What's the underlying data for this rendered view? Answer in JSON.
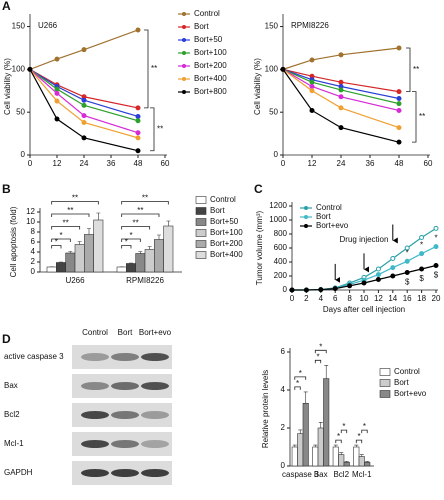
{
  "chart_data": [
    {
      "type": "line",
      "label": "A",
      "title": "U266",
      "ylabel": "Cell viability (%)",
      "x": [
        0,
        12,
        24,
        48
      ],
      "xlim": [
        0,
        60
      ],
      "xticks": [
        0,
        12,
        24,
        36,
        48,
        60
      ],
      "ylim": [
        0,
        160
      ],
      "yticks": [
        0,
        50,
        100,
        150
      ],
      "series": [
        {
          "name": "Control",
          "color": "#a0722e",
          "values": [
            100,
            112,
            123,
            146
          ]
        },
        {
          "name": "Bort",
          "color": "#d62728",
          "values": [
            100,
            82,
            68,
            55
          ]
        },
        {
          "name": "Bort+50",
          "color": "#2a3fd6",
          "values": [
            100,
            80,
            64,
            45
          ]
        },
        {
          "name": "Bort+100",
          "color": "#2ca02c",
          "values": [
            100,
            77,
            58,
            40
          ]
        },
        {
          "name": "Bort+200",
          "color": "#d62ad6",
          "values": [
            100,
            72,
            46,
            26
          ]
        },
        {
          "name": "Bort+400",
          "color": "#f0a030",
          "values": [
            100,
            63,
            38,
            20
          ]
        },
        {
          "name": "Bort+800",
          "color": "#000000",
          "values": [
            100,
            42,
            20,
            5
          ]
        }
      ],
      "annotations": [
        "**",
        "**"
      ]
    },
    {
      "type": "line",
      "title": "RPMI8226",
      "ylabel": "Cell viability (%)",
      "x": [
        0,
        12,
        24,
        48
      ],
      "xlim": [
        0,
        60
      ],
      "xticks": [
        0,
        12,
        24,
        36,
        48,
        60
      ],
      "ylim": [
        0,
        160
      ],
      "yticks": [
        0,
        50,
        100,
        150
      ],
      "series": [
        {
          "color": "#a0722e",
          "values": [
            100,
            111,
            117,
            125
          ]
        },
        {
          "color": "#d62728",
          "values": [
            100,
            92,
            85,
            74
          ]
        },
        {
          "color": "#2a3fd6",
          "values": [
            100,
            88,
            80,
            66
          ]
        },
        {
          "color": "#2ca02c",
          "values": [
            100,
            85,
            76,
            60
          ]
        },
        {
          "color": "#d62ad6",
          "values": [
            100,
            80,
            68,
            52
          ]
        },
        {
          "color": "#f0a030",
          "values": [
            100,
            75,
            55,
            32
          ]
        },
        {
          "color": "#000000",
          "values": [
            100,
            52,
            32,
            15
          ]
        }
      ],
      "annotations": [
        "**",
        "**"
      ]
    },
    {
      "type": "bar",
      "label": "B",
      "ylabel": "Cell apoptosis (fold)",
      "categories": [
        "U266",
        "RPMI8226"
      ],
      "ylim": [
        0,
        12
      ],
      "yticks": [
        0,
        2,
        4,
        6,
        8,
        10,
        12
      ],
      "series": [
        {
          "name": "Control",
          "color": "#ffffff",
          "values": [
            1,
            1
          ],
          "errors": [
            0.05,
            0.05
          ]
        },
        {
          "name": "Bort",
          "color": "#444444",
          "values": [
            1.9,
            1.7
          ],
          "errors": [
            0.1,
            0.1
          ]
        },
        {
          "name": "Bort+50",
          "color": "#888888",
          "values": [
            3.8,
            3.7
          ],
          "errors": [
            0.3,
            0.4
          ]
        },
        {
          "name": "Bort+100",
          "color": "#cccccc",
          "values": [
            5.5,
            4.5
          ],
          "errors": [
            0.6,
            0.6
          ]
        },
        {
          "name": "Bort+200",
          "color": "#aaaaaa",
          "values": [
            7.5,
            6.5
          ],
          "errors": [
            1.2,
            0.9
          ]
        },
        {
          "name": "Bort+400",
          "color": "#dddddd",
          "values": [
            10.4,
            9.2
          ],
          "errors": [
            1.4,
            1.0
          ]
        }
      ],
      "annotations": [
        "*",
        "*",
        "**",
        "**",
        "**",
        "*",
        "*",
        "**",
        "**",
        "**"
      ]
    },
    {
      "type": "line",
      "label": "C",
      "ylabel": "Tumor volume (mm³)",
      "xlabel": "Days after cell injection",
      "x": [
        0,
        2,
        4,
        6,
        8,
        10,
        12,
        14,
        16,
        18,
        20
      ],
      "xlim": [
        0,
        20
      ],
      "xticks": [
        0,
        2,
        4,
        6,
        8,
        10,
        12,
        14,
        16,
        18,
        20
      ],
      "ylim": [
        0,
        1200
      ],
      "yticks": [
        0,
        200,
        400,
        600,
        800,
        1000,
        1200
      ],
      "series": [
        {
          "name": "Control",
          "color": "#2aa0a8",
          "values": [
            0,
            0,
            5,
            30,
            100,
            180,
            300,
            450,
            600,
            750,
            880
          ]
        },
        {
          "name": "Bort",
          "color": "#3fb8c8",
          "values": [
            0,
            0,
            5,
            25,
            80,
            140,
            220,
            320,
            410,
            520,
            620
          ]
        },
        {
          "name": "Bort+evo",
          "color": "#000000",
          "values": [
            0,
            0,
            5,
            20,
            60,
            100,
            150,
            200,
            250,
            300,
            350
          ]
        }
      ],
      "injection_x": [
        6,
        10,
        14
      ],
      "annotations": [
        "Drug injection",
        "*",
        "*",
        "*",
        "$",
        "$",
        "$"
      ]
    },
    {
      "type": "blot",
      "label": "D",
      "lanes": [
        "Control",
        "Bort",
        "Bort+evo"
      ],
      "rows": [
        "active caspase 3",
        "Bax",
        "Bcl2",
        "Mcl-1",
        "GAPDH"
      ]
    },
    {
      "type": "bar",
      "ylabel": "Relative protein levels",
      "categories": [
        "caspase 3",
        "Bax",
        "Bcl2",
        "Mcl-1"
      ],
      "ylim": [
        0,
        6
      ],
      "yticks": [
        0,
        2,
        4,
        6
      ],
      "series": [
        {
          "name": "Control",
          "color": "#ffffff",
          "values": [
            1,
            1,
            1,
            1
          ],
          "errors": [
            0.1,
            0.1,
            0.1,
            0.1
          ]
        },
        {
          "name": "Bort",
          "color": "#cccccc",
          "values": [
            1.7,
            2,
            0.6,
            0.5
          ],
          "errors": [
            0.2,
            0.3,
            0.1,
            0.1
          ]
        },
        {
          "name": "Bort+evo",
          "color": "#888888",
          "values": [
            3.3,
            4.6,
            0.2,
            0.2
          ],
          "errors": [
            0.6,
            0.7,
            0.05,
            0.05
          ]
        }
      ],
      "annotations": [
        "*",
        "*",
        "*",
        "*",
        "*",
        "*",
        "*",
        "*"
      ]
    }
  ]
}
